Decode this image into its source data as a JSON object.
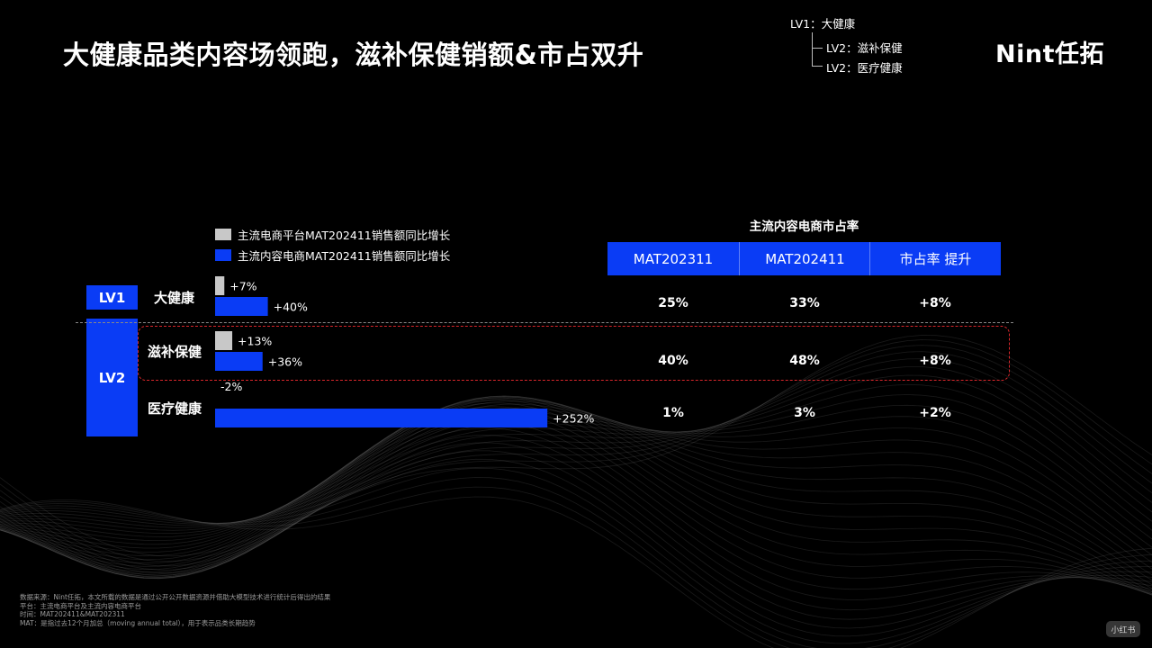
{
  "title": "大健康品类内容场领跑，滋补保健销额&市占双升",
  "brand": "Nint任拓",
  "hierarchy": {
    "lv1": "LV1：大健康",
    "lv2_items": [
      "LV2：滋补保健",
      "LV2：医疗健康"
    ]
  },
  "levels": {
    "lv1": "LV1",
    "lv2": "LV2"
  },
  "colors": {
    "mainstream": "#c8c8c8",
    "content": "#0a3cf5",
    "highlight": "#d8262b"
  },
  "chart_data": {
    "type": "bar",
    "orientation": "horizontal",
    "categories": [
      "大健康",
      "滋补保健",
      "医疗健康"
    ],
    "series": [
      {
        "name": "主流电商平台MAT202411销售额同比增长",
        "values": [
          7,
          13,
          -2
        ],
        "labels": [
          "+7%",
          "+13%",
          "-2%"
        ]
      },
      {
        "name": "主流内容电商MAT202411销售额同比增长",
        "values": [
          40,
          36,
          252
        ],
        "labels": [
          "+40%",
          "+36%",
          "+252%"
        ]
      }
    ],
    "xlim": [
      0,
      252
    ],
    "unit": "%",
    "grid": false,
    "legend_position": "top-left"
  },
  "table": {
    "title": "主流内容电商市占率",
    "headers": [
      "MAT202311",
      "MAT202411",
      "市占率 提升"
    ],
    "rows": [
      [
        "25%",
        "33%",
        "+8%"
      ],
      [
        "40%",
        "48%",
        "+8%"
      ],
      [
        "1%",
        "3%",
        "+2%"
      ]
    ]
  },
  "footnotes": [
    "数据来源：Nint任拓，本文所载的数据是通过公开公开数据资源并借助大模型技术进行统计后得出的结果",
    "平台：主流电商平台及主流内容电商平台",
    "时间：MAT202411&MAT202311",
    "MAT：是指过去12个月加总（moving annual total），用于表示品类长期趋势"
  ],
  "watermark": "小红书"
}
